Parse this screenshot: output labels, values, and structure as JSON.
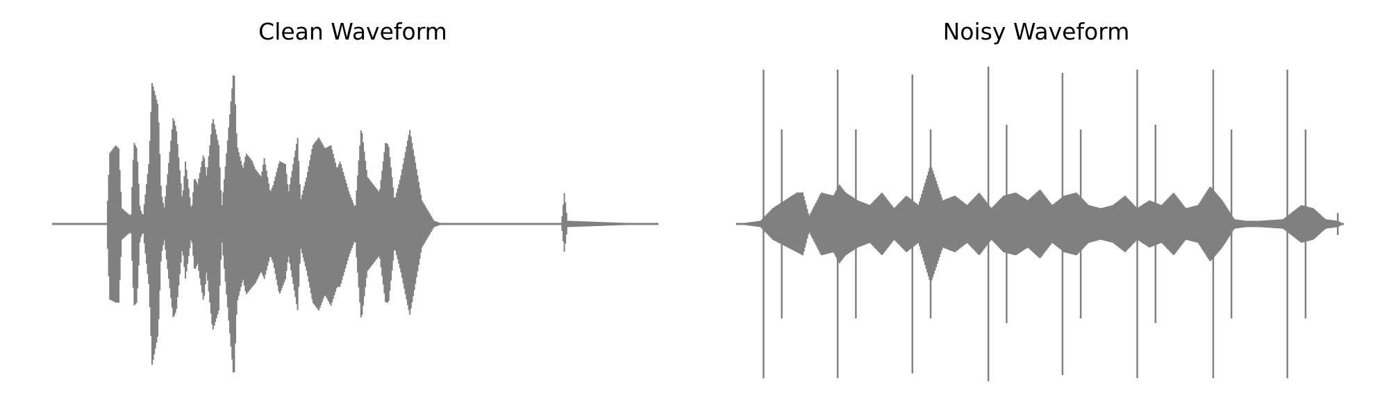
{
  "colors": {
    "waveform": "#808080",
    "background": "#ffffff",
    "title": "#000000"
  },
  "chart_data": [
    {
      "type": "line",
      "title": "Clean Waveform",
      "xlabel": "",
      "ylabel": "",
      "axes_visible": false,
      "grid": false,
      "ylim": [
        -1.0,
        1.0
      ],
      "duration": 1.0,
      "envelope": {
        "x": [
          0.0,
          0.09,
          0.095,
          0.105,
          0.11,
          0.115,
          0.13,
          0.135,
          0.14,
          0.145,
          0.15,
          0.16,
          0.165,
          0.175,
          0.18,
          0.185,
          0.2,
          0.205,
          0.215,
          0.22,
          0.23,
          0.235,
          0.24,
          0.25,
          0.255,
          0.265,
          0.275,
          0.28,
          0.3,
          0.305,
          0.315,
          0.32,
          0.33,
          0.335,
          0.345,
          0.35,
          0.36,
          0.365,
          0.375,
          0.385,
          0.39,
          0.405,
          0.41,
          0.42,
          0.43,
          0.44,
          0.45,
          0.46,
          0.47,
          0.475,
          0.49,
          0.5,
          0.51,
          0.52,
          0.53,
          0.54,
          0.55,
          0.555,
          0.565,
          0.575,
          0.59,
          0.61,
          0.63,
          0.645,
          0.655,
          0.67,
          0.68,
          0.69,
          0.7,
          0.72,
          0.74,
          0.75,
          0.84,
          0.845,
          0.85,
          0.995
        ],
        "upper": [
          0.0,
          0.0,
          0.45,
          0.5,
          0.48,
          0.1,
          0.05,
          0.52,
          0.48,
          0.1,
          0.05,
          0.4,
          0.9,
          0.75,
          0.2,
          0.1,
          0.68,
          0.6,
          0.15,
          0.4,
          0.08,
          0.3,
          0.25,
          0.45,
          0.3,
          0.68,
          0.5,
          0.1,
          1.0,
          0.5,
          0.35,
          0.45,
          0.4,
          0.35,
          0.3,
          0.42,
          0.2,
          0.25,
          0.4,
          0.38,
          0.2,
          0.55,
          0.15,
          0.3,
          0.5,
          0.55,
          0.48,
          0.5,
          0.35,
          0.4,
          0.2,
          0.1,
          0.62,
          0.3,
          0.25,
          0.2,
          0.52,
          0.5,
          0.15,
          0.3,
          0.6,
          0.15,
          0.02,
          0.0,
          0.0,
          0.0,
          0.0,
          0.0,
          0.0,
          0.0,
          0.0,
          0.0,
          0.0,
          0.2,
          0.02,
          0.0
        ],
        "lower": [
          0.0,
          0.0,
          -0.48,
          -0.5,
          -0.5,
          -0.1,
          -0.05,
          -0.52,
          -0.5,
          -0.1,
          -0.05,
          -0.4,
          -0.9,
          -0.7,
          -0.2,
          -0.1,
          -0.6,
          -0.55,
          -0.15,
          -0.35,
          -0.08,
          -0.3,
          -0.25,
          -0.5,
          -0.3,
          -0.68,
          -0.55,
          -0.1,
          -1.0,
          -0.5,
          -0.35,
          -0.45,
          -0.4,
          -0.38,
          -0.3,
          -0.35,
          -0.2,
          -0.25,
          -0.45,
          -0.35,
          -0.2,
          -0.55,
          -0.15,
          -0.3,
          -0.5,
          -0.55,
          -0.45,
          -0.52,
          -0.4,
          -0.4,
          -0.2,
          -0.1,
          -0.62,
          -0.3,
          -0.25,
          -0.2,
          -0.5,
          -0.5,
          -0.15,
          -0.3,
          -0.58,
          -0.15,
          -0.02,
          0.0,
          0.0,
          0.0,
          0.0,
          0.0,
          0.0,
          0.0,
          0.0,
          0.0,
          0.0,
          -0.18,
          -0.02,
          0.0
        ]
      }
    },
    {
      "type": "line",
      "title": "Noisy Waveform",
      "xlabel": "",
      "ylabel": "",
      "axes_visible": false,
      "grid": false,
      "ylim": [
        -1.0,
        1.0
      ],
      "duration": 1.0,
      "envelope": {
        "x": [
          0.0,
          0.04,
          0.06,
          0.1,
          0.11,
          0.12,
          0.14,
          0.16,
          0.17,
          0.18,
          0.2,
          0.22,
          0.24,
          0.26,
          0.28,
          0.3,
          0.32,
          0.34,
          0.36,
          0.38,
          0.4,
          0.42,
          0.44,
          0.46,
          0.48,
          0.5,
          0.52,
          0.54,
          0.56,
          0.58,
          0.6,
          0.62,
          0.64,
          0.66,
          0.68,
          0.7,
          0.72,
          0.74,
          0.76,
          0.78,
          0.8,
          0.82,
          0.84,
          0.86,
          0.9,
          0.93,
          0.95,
          0.97,
          0.99,
          1.0
        ],
        "upper": [
          0.0,
          0.02,
          0.1,
          0.2,
          0.2,
          0.05,
          0.2,
          0.18,
          0.25,
          0.2,
          0.15,
          0.12,
          0.2,
          0.1,
          0.18,
          0.12,
          0.38,
          0.15,
          0.18,
          0.12,
          0.2,
          0.1,
          0.18,
          0.2,
          0.15,
          0.22,
          0.12,
          0.18,
          0.2,
          0.12,
          0.1,
          0.12,
          0.18,
          0.1,
          0.15,
          0.12,
          0.2,
          0.1,
          0.12,
          0.24,
          0.15,
          0.03,
          0.02,
          0.02,
          0.03,
          0.12,
          0.1,
          0.03,
          0.02,
          0.0
        ],
        "lower": [
          0.0,
          -0.02,
          -0.1,
          -0.18,
          -0.2,
          -0.05,
          -0.2,
          -0.18,
          -0.25,
          -0.2,
          -0.15,
          -0.12,
          -0.2,
          -0.1,
          -0.18,
          -0.12,
          -0.38,
          -0.15,
          -0.18,
          -0.12,
          -0.2,
          -0.1,
          -0.18,
          -0.2,
          -0.15,
          -0.22,
          -0.12,
          -0.18,
          -0.2,
          -0.12,
          -0.1,
          -0.12,
          -0.18,
          -0.1,
          -0.15,
          -0.12,
          -0.2,
          -0.1,
          -0.12,
          -0.24,
          -0.15,
          -0.03,
          -0.02,
          -0.02,
          -0.03,
          -0.12,
          -0.1,
          -0.03,
          -0.02,
          0.0
        ]
      },
      "spikes": [
        {
          "x": 0.045,
          "top": 0.98,
          "bottom": -0.98
        },
        {
          "x": 0.075,
          "top": 0.6,
          "bottom": -0.6
        },
        {
          "x": 0.167,
          "top": 0.98,
          "bottom": -0.98
        },
        {
          "x": 0.197,
          "top": 0.6,
          "bottom": -0.6
        },
        {
          "x": 0.29,
          "top": 0.95,
          "bottom": -0.95
        },
        {
          "x": 0.32,
          "top": 0.6,
          "bottom": -0.6
        },
        {
          "x": 0.415,
          "top": 1.0,
          "bottom": -1.0
        },
        {
          "x": 0.445,
          "top": 0.63,
          "bottom": -0.63
        },
        {
          "x": 0.537,
          "top": 0.96,
          "bottom": -0.96
        },
        {
          "x": 0.567,
          "top": 0.6,
          "bottom": -0.6
        },
        {
          "x": 0.66,
          "top": 0.98,
          "bottom": -0.98
        },
        {
          "x": 0.69,
          "top": 0.63,
          "bottom": -0.63
        },
        {
          "x": 0.785,
          "top": 0.98,
          "bottom": -0.98
        },
        {
          "x": 0.815,
          "top": 0.6,
          "bottom": -0.6
        },
        {
          "x": 0.907,
          "top": 0.98,
          "bottom": -0.98
        },
        {
          "x": 0.937,
          "top": 0.6,
          "bottom": -0.6
        },
        {
          "x": 0.99,
          "top": 0.07,
          "bottom": -0.07
        }
      ]
    }
  ]
}
